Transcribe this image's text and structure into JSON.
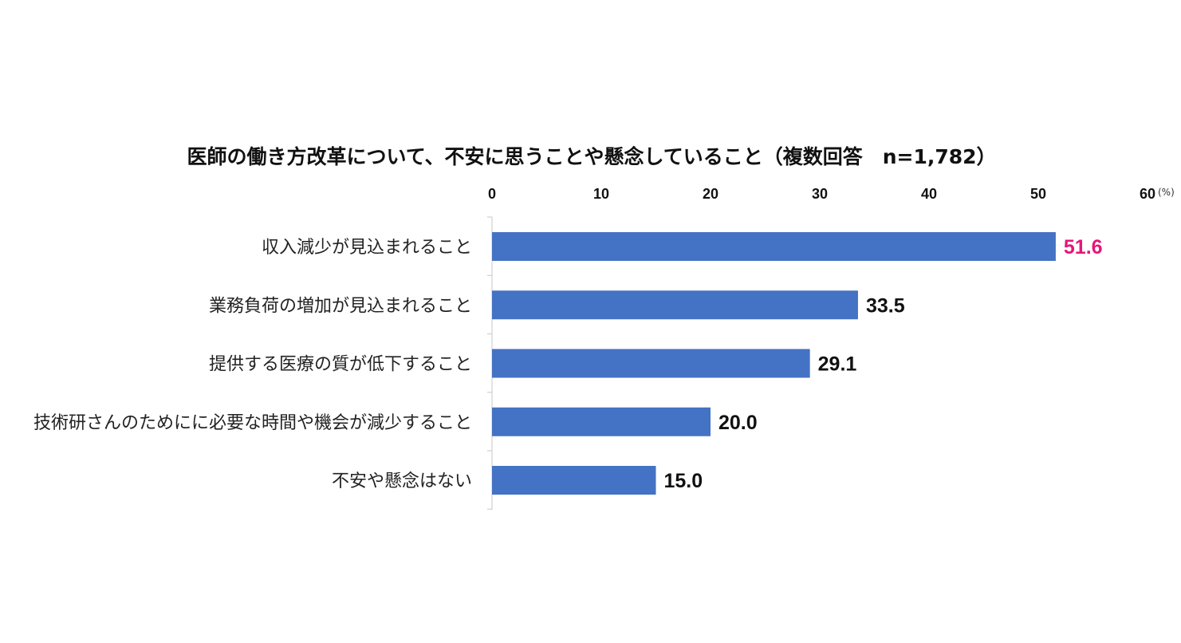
{
  "chart_data": {
    "type": "bar",
    "orientation": "horizontal",
    "title": "医師の働き方改革について、不安に思うことや懸念していること（複数回答　n=1,782）",
    "xlim": [
      0,
      60
    ],
    "x_ticks": [
      "0",
      "10",
      "20",
      "30",
      "40",
      "50",
      "60"
    ],
    "x_unit": "(%)",
    "categories": [
      "収入減少が見込まれること",
      "業務負荷の増加が見込まれること",
      "提供する医療の質が低下すること",
      "技術研さんのためにに必要な時間や機会が減少すること",
      "不安や懸念はない"
    ],
    "values": [
      51.6,
      33.5,
      29.1,
      20.0,
      15.0
    ],
    "value_labels": [
      "51.6",
      "33.5",
      "29.1",
      "20.0",
      "15.0"
    ],
    "bar_color": "#4472C4",
    "highlight_label_color": "#E6167A",
    "label_color": "#111111",
    "axis_color": "#D0D0D0",
    "legend": "none",
    "grid": false
  }
}
